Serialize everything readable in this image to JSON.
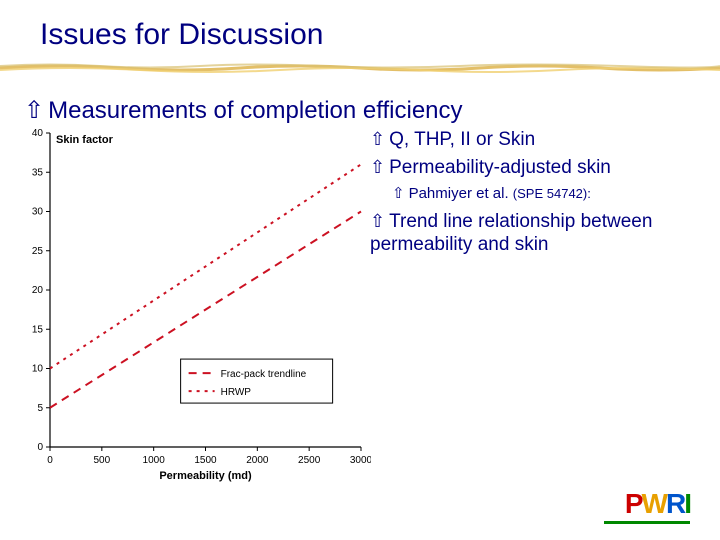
{
  "title": "Issues for Discussion",
  "mainBullet": "Measurements of completion efficiency",
  "subBullets": {
    "b1": "Q, THP, II or Skin",
    "b2": "Permeability-adjusted skin",
    "b2ref": "Pahmiyer et al.",
    "b2spe": "(SPE 54742):",
    "b3": "Trend line relationship between permeability and skin"
  },
  "chart": {
    "ylabel": "Skin factor",
    "xlabel": "Permeability (md)",
    "ylabel_fontsize": 11,
    "xlabel_fontsize": 11,
    "label_fontweight": "bold",
    "axis_fontsize": 10,
    "axis_color": "#000000",
    "plot_bg": "#ffffff",
    "xlim": [
      0,
      3000
    ],
    "ylim": [
      0,
      40
    ],
    "xticks": [
      0,
      500,
      1000,
      1500,
      2000,
      2500,
      3000
    ],
    "yticks": [
      0,
      5,
      10,
      15,
      20,
      25,
      30,
      35,
      40
    ],
    "series": [
      {
        "name": "Frac-pack trendline",
        "color": "#cc1122",
        "dash": "8,6",
        "width": 2,
        "points": [
          [
            0,
            5
          ],
          [
            3000,
            30
          ]
        ]
      },
      {
        "name": "HRWP",
        "color": "#cc1122",
        "dash": "3,5",
        "width": 2,
        "points": [
          [
            0,
            10
          ],
          [
            3000,
            36
          ]
        ]
      }
    ],
    "legend": {
      "items": [
        "Frac-pack trendline",
        "HRWP"
      ],
      "fontsize": 10,
      "color": "#000000",
      "box_border": "#000000"
    }
  },
  "underline": {
    "colors": [
      "#e0b858",
      "#f0d070",
      "#d8c070"
    ],
    "height": 10
  },
  "logo": {
    "text": "PWRI",
    "colors": {
      "P": "#cc0000",
      "W": "#e8a000",
      "R": "#0055cc",
      "I": "#008800"
    }
  }
}
